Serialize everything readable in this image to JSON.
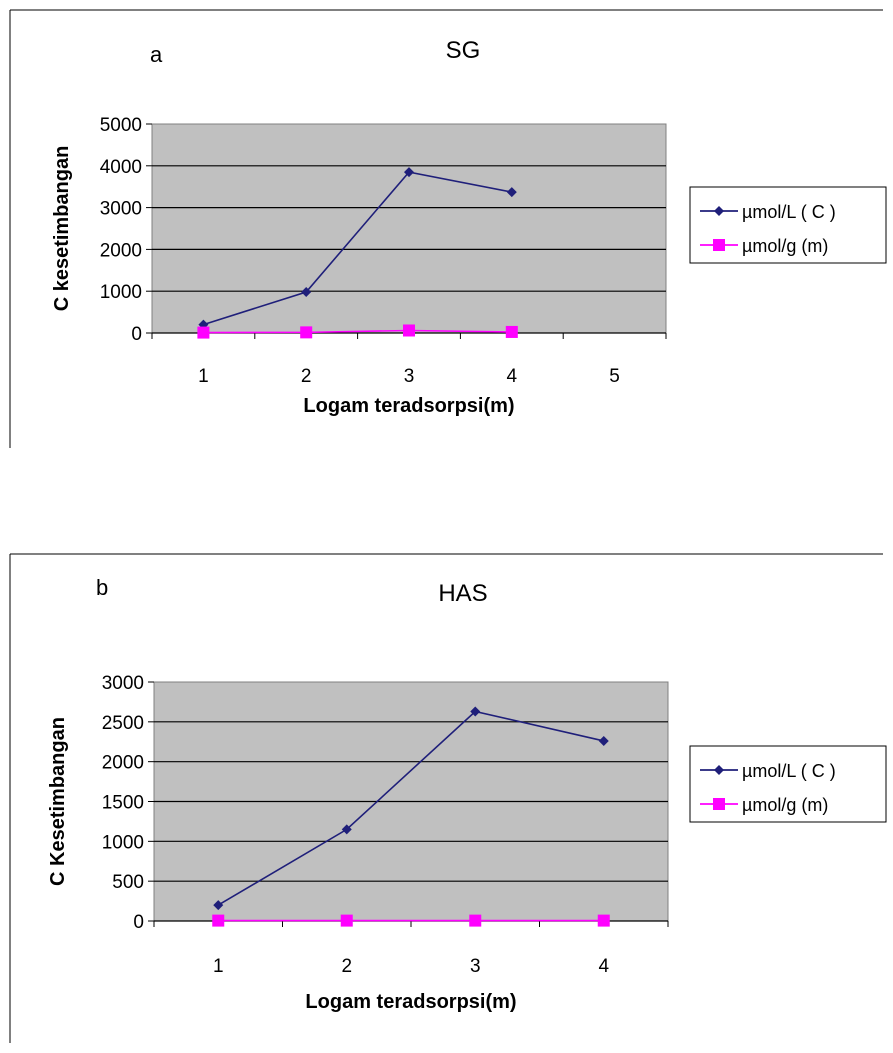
{
  "chart_data": [
    {
      "type": "line",
      "panel_label": "a",
      "title": "SG",
      "xlabel": "Logam teradsorpsi(m)",
      "ylabel": "C kesetimbangan",
      "categories": [
        "1",
        "2",
        "3",
        "4",
        "5"
      ],
      "ylim": [
        0,
        5000
      ],
      "yticks": [
        "5000",
        "4000",
        "3000",
        "2000",
        "1000",
        "0"
      ],
      "grid": true,
      "legend_position": "right",
      "series": [
        {
          "name": "µmol/L ( C )",
          "values": [
            200,
            980,
            3850,
            3370,
            null
          ],
          "color": "#1f1f7a",
          "marker": "diamond"
        },
        {
          "name": "µmol/g (m)",
          "values": [
            10,
            15,
            60,
            25,
            null
          ],
          "color": "#ff00ff",
          "marker": "square"
        }
      ]
    },
    {
      "type": "line",
      "panel_label": "b",
      "title": "HAS",
      "xlabel": "Logam teradsorpsi(m)",
      "ylabel": "C Kesetimbangan",
      "categories": [
        "1",
        "2",
        "3",
        "4"
      ],
      "ylim": [
        0,
        3000
      ],
      "yticks": [
        "3000",
        "2500",
        "2000",
        "1500",
        "1000",
        "500",
        "0"
      ],
      "grid": true,
      "legend_position": "right",
      "series": [
        {
          "name": "µmol/L ( C )",
          "values": [
            200,
            1150,
            2630,
            2260
          ],
          "color": "#1f1f7a",
          "marker": "diamond"
        },
        {
          "name": "µmol/g (m)",
          "values": [
            5,
            5,
            5,
            5
          ],
          "color": "#ff00ff",
          "marker": "square"
        }
      ]
    }
  ]
}
